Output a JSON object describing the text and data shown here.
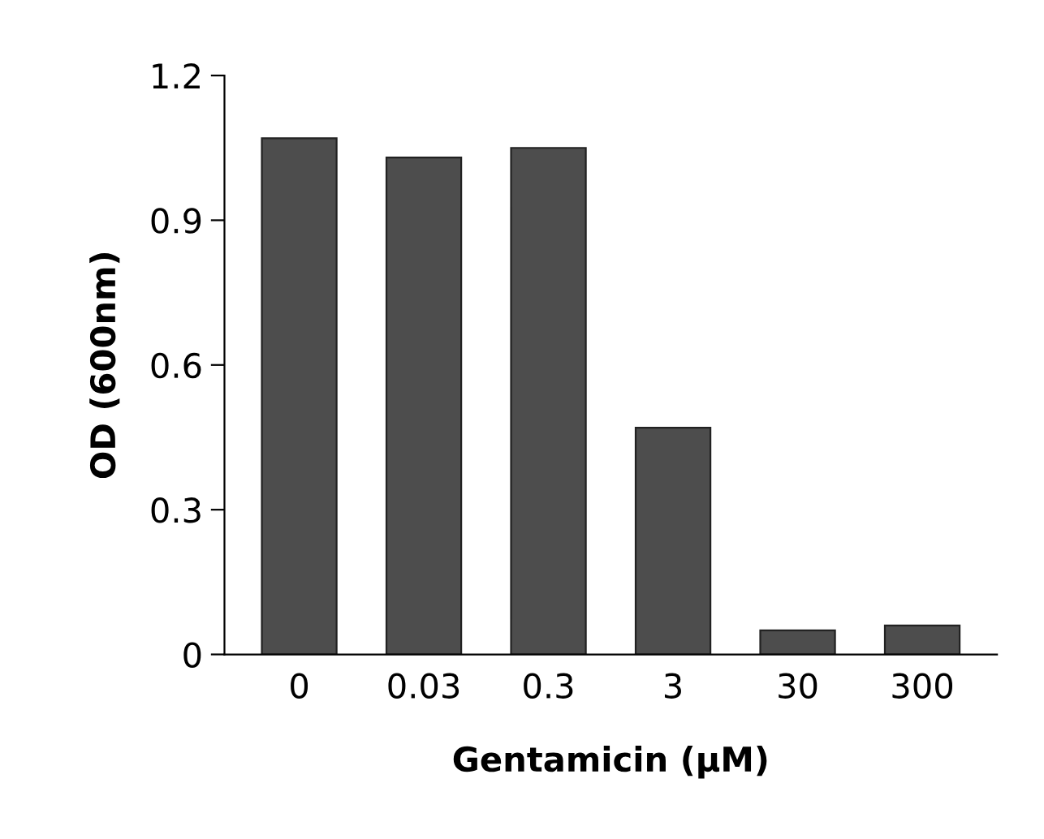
{
  "chart_data": {
    "type": "bar",
    "xlabel": "Gentamicin (μM)",
    "ylabel": "OD (600nm)",
    "categories": [
      "0",
      "0.03",
      "0.3",
      "3",
      "30",
      "300"
    ],
    "values": [
      1.07,
      1.03,
      1.05,
      0.47,
      0.05,
      0.06
    ],
    "color": "#4d4d4d",
    "ylim": [
      0,
      1.2
    ],
    "yticks": [
      0,
      0.3,
      0.6,
      0.9,
      1.2
    ],
    "grid": false,
    "legend": false
  }
}
